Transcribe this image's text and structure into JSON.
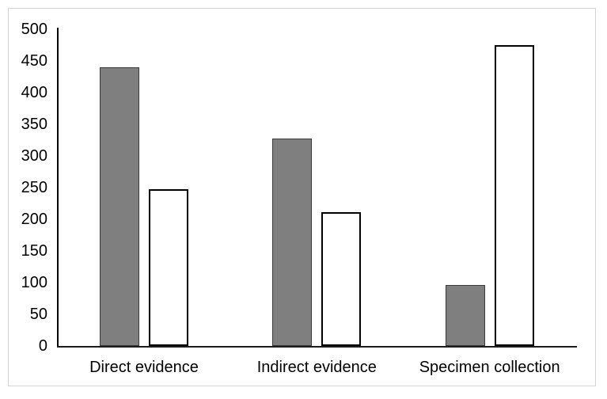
{
  "chart_data": {
    "type": "bar",
    "title": "",
    "xlabel": "",
    "ylabel": "",
    "categories": [
      "Direct evidence",
      "Indirect evidence",
      "Specimen collection"
    ],
    "series": [
      {
        "name": "gray",
        "fill": "#7f7f7f",
        "border": "#3a3a3a",
        "values": [
          440,
          328,
          96
        ]
      },
      {
        "name": "white",
        "fill": "#ffffff",
        "border": "#000000",
        "values": [
          247,
          211,
          475
        ]
      }
    ],
    "ylim": [
      0,
      500
    ],
    "ytick_step": 50,
    "yticks": [
      0,
      50,
      100,
      150,
      200,
      250,
      300,
      350,
      400,
      450,
      500
    ],
    "grid": false,
    "legend": "none",
    "plot_background": "#ffffff",
    "frame_border_color": "#d4d4d4",
    "axis_color": "#000000"
  }
}
